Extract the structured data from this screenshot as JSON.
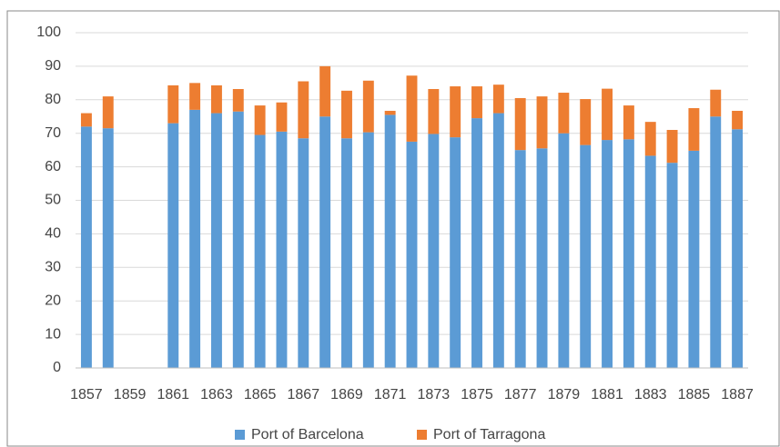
{
  "chart_data": {
    "type": "stacked-bar",
    "categories": [
      "1857",
      null,
      "1859",
      null,
      "1861",
      null,
      "1863",
      null,
      "1865",
      null,
      "1867",
      null,
      "1869",
      null,
      "1871",
      null,
      "1873",
      null,
      "1875",
      null,
      "1877",
      null,
      "1879",
      null,
      "1881",
      null,
      "1883",
      null,
      "1885",
      null,
      "1887"
    ],
    "series": [
      {
        "name": "Port of Barcelona",
        "color": "#5b9bd5",
        "values": [
          72,
          71.5,
          null,
          null,
          73,
          77,
          76,
          76.5,
          69.5,
          70.5,
          68.5,
          75,
          68.5,
          70.3,
          75.5,
          67.5,
          69.8,
          68.8,
          74.5,
          76,
          65,
          65.5,
          70,
          66.5,
          68,
          68.2,
          63.3,
          61.2,
          64.8,
          75,
          71.2
        ]
      },
      {
        "name": "Port of Tarragona",
        "color": "#ed7d31",
        "values": [
          4,
          9.5,
          null,
          null,
          11.3,
          8,
          8.3,
          6.7,
          8.8,
          8.7,
          17,
          15,
          14.2,
          15.4,
          1.2,
          19.7,
          13.4,
          15.2,
          9.5,
          8.5,
          15.5,
          15.5,
          12.1,
          13.7,
          15.3,
          10.1,
          10.1,
          9.8,
          12.7,
          8,
          5.5
        ]
      }
    ],
    "ylim": [
      0,
      100
    ],
    "yticks": [
      0,
      10,
      20,
      30,
      40,
      50,
      60,
      70,
      80,
      90,
      100
    ],
    "grid": true,
    "legend": "bottom"
  }
}
